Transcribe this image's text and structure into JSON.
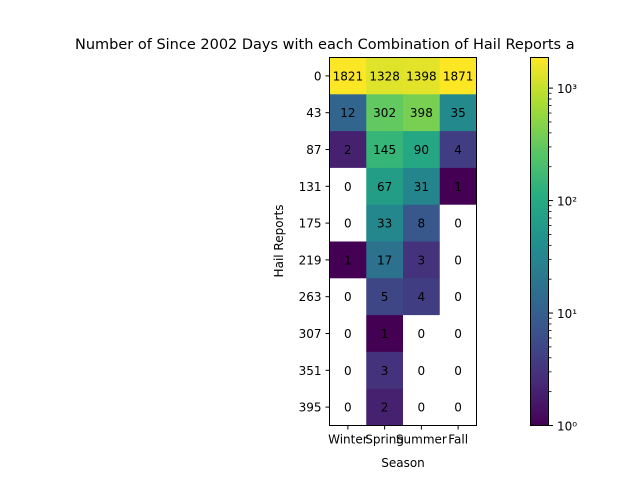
{
  "chart_data": {
    "type": "heatmap",
    "title": "Number of Since 2002 Days with each Combination of Hail Reports a",
    "xlabel": "Season",
    "ylabel": "Hail Reports",
    "x_categories": [
      "Winter",
      "Spring",
      "Summer",
      "Fall"
    ],
    "y_categories": [
      "0",
      "43",
      "87",
      "131",
      "175",
      "219",
      "263",
      "307",
      "351",
      "395"
    ],
    "values": [
      [
        1821,
        1328,
        1398,
        1871
      ],
      [
        12,
        302,
        398,
        35
      ],
      [
        2,
        145,
        90,
        4
      ],
      [
        0,
        67,
        31,
        1
      ],
      [
        0,
        33,
        8,
        0
      ],
      [
        1,
        17,
        3,
        0
      ],
      [
        0,
        5,
        4,
        0
      ],
      [
        0,
        1,
        0,
        0
      ],
      [
        0,
        3,
        0,
        0
      ],
      [
        0,
        2,
        0,
        0
      ]
    ],
    "color_scale": {
      "colormap": "viridis",
      "scale": "log",
      "vmin": 1,
      "vmax": 1871,
      "zero_color": "#ffffff",
      "ticks": [
        {
          "value": 1,
          "label": "10⁰"
        },
        {
          "value": 10,
          "label": "10¹"
        },
        {
          "value": 100,
          "label": "10²"
        },
        {
          "value": 1000,
          "label": "10³"
        }
      ]
    },
    "grid": false
  }
}
